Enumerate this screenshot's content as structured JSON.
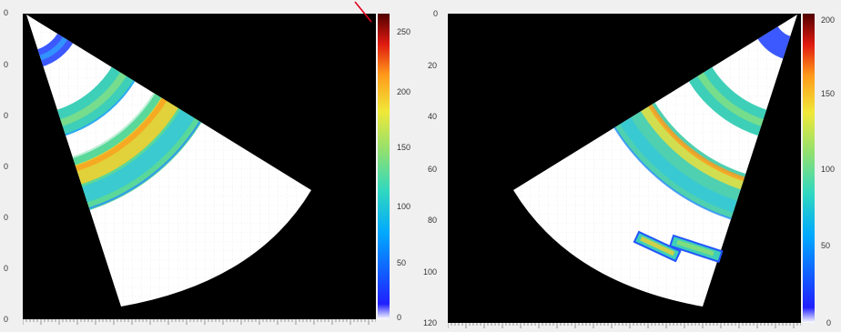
{
  "left_plot": {
    "y_ticks": [
      "0",
      "0",
      "0",
      "0",
      "0",
      "0",
      "0"
    ],
    "colorbar": {
      "ticks": [
        "250",
        "200",
        "150",
        "100",
        "50",
        "0"
      ],
      "tick_values": [
        250,
        200,
        150,
        100,
        50,
        0
      ],
      "max": 275
    }
  },
  "right_plot": {
    "y_ticks": [
      "0",
      "20",
      "40",
      "60",
      "80",
      "100",
      "120"
    ],
    "y_tick_values": [
      0,
      20,
      40,
      60,
      80,
      100,
      120
    ],
    "colorbar": {
      "ticks": [
        "200",
        "150",
        "100",
        "50",
        "0"
      ],
      "tick_values": [
        200,
        150,
        100,
        50,
        0
      ],
      "max": 205
    }
  },
  "colors": {
    "background": "#000000",
    "sector_fill": "#ffffff",
    "frame": "#f0f0f0",
    "annotation_arrow": "#e0001a",
    "colormap": [
      "#0000ff",
      "#00a0ff",
      "#33d6c8",
      "#7fe07f",
      "#e8e840",
      "#ff9a1a",
      "#e81a10",
      "#6a0000"
    ]
  },
  "icons": [
    "red-annotation-arrow"
  ]
}
